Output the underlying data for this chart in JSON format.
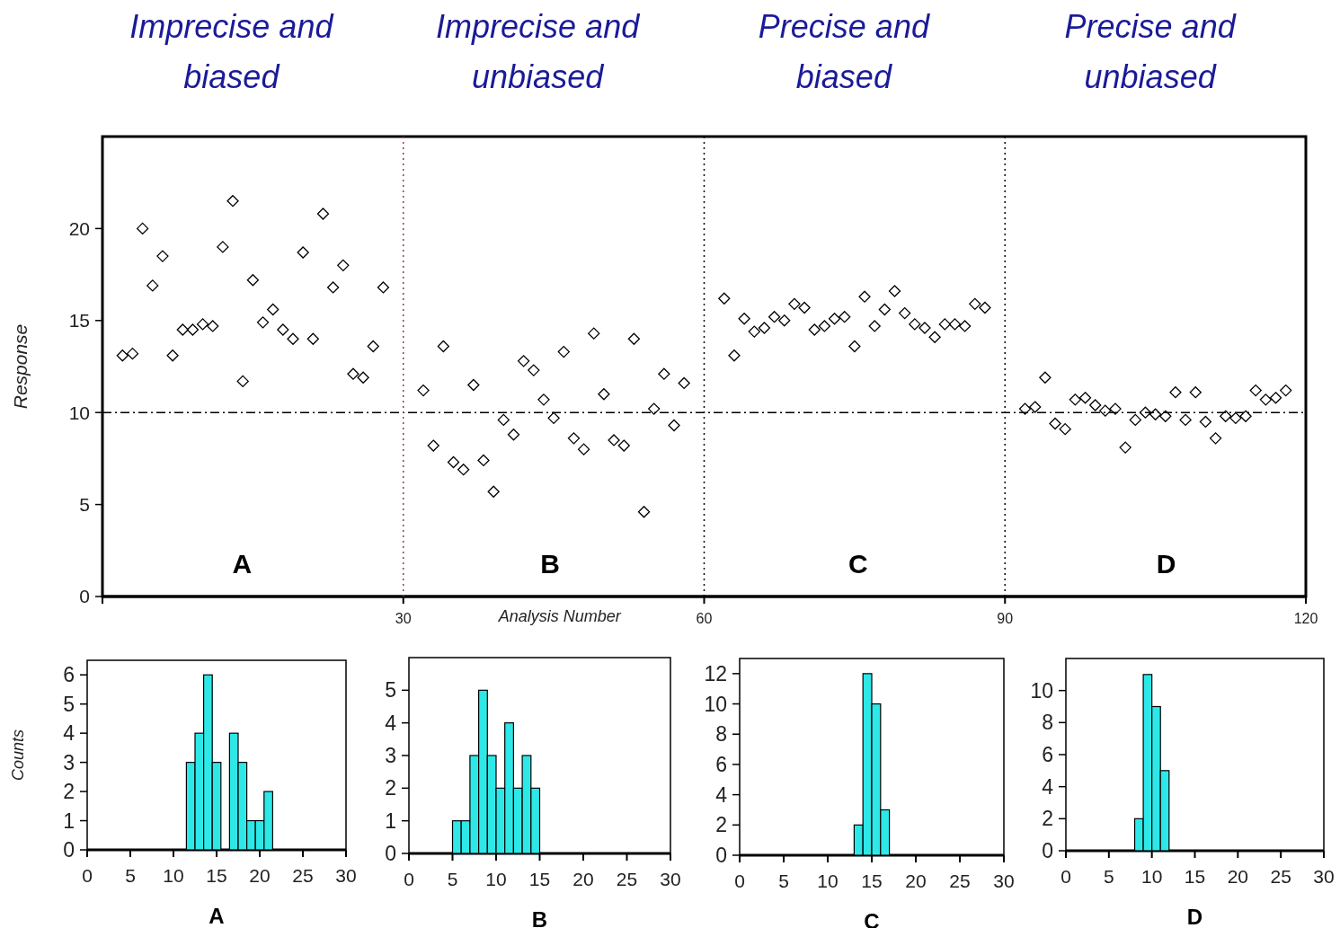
{
  "chart_data": [
    {
      "type": "scatter",
      "xlabel": "Analysis Number",
      "ylabel": "Response",
      "marker": "diamond",
      "grid": false,
      "xlim": [
        0,
        120
      ],
      "xticks": [
        {
          "value": 0,
          "label": null
        },
        30,
        60,
        90,
        120
      ],
      "ylim": [
        0,
        25
      ],
      "yticks": [
        0,
        5,
        10,
        15,
        20
      ],
      "series": [
        {
          "color": "#000000",
          "x": [
            2,
            3,
            4,
            5,
            6,
            7,
            8,
            9,
            10,
            11,
            12,
            13,
            14,
            15,
            16,
            17,
            18,
            19,
            20,
            21,
            22,
            23,
            24,
            25,
            26,
            27,
            28
          ],
          "values": [
            13.1,
            13.2,
            20.0,
            16.9,
            18.5,
            13.1,
            14.5,
            14.5,
            14.8,
            14.7,
            19.0,
            21.5,
            11.7,
            17.2,
            14.9,
            15.6,
            14.5,
            14.0,
            18.7,
            14.0,
            20.8,
            16.8,
            18.0,
            12.1,
            11.9,
            13.6,
            16.8
          ]
        },
        {
          "color": "#000000",
          "x": [
            32,
            33,
            34,
            35,
            36,
            37,
            38,
            39,
            40,
            41,
            42,
            43,
            44,
            45,
            46,
            47,
            48,
            49,
            50,
            51,
            52,
            53,
            54,
            55,
            56,
            57,
            58
          ],
          "values": [
            11.2,
            8.2,
            13.6,
            7.3,
            6.9,
            11.5,
            7.4,
            5.7,
            9.6,
            8.8,
            12.8,
            12.3,
            10.7,
            9.7,
            13.3,
            8.6,
            8.0,
            14.3,
            11.0,
            8.5,
            8.2,
            14.0,
            4.6,
            10.2,
            12.1,
            9.3,
            11.6
          ]
        },
        {
          "color": "#000000",
          "x": [
            62,
            63,
            64,
            65,
            66,
            67,
            68,
            69,
            70,
            71,
            72,
            73,
            74,
            75,
            76,
            77,
            78,
            79,
            80,
            81,
            82,
            83,
            84,
            85,
            86,
            87,
            88
          ],
          "values": [
            16.2,
            13.1,
            15.1,
            14.4,
            14.6,
            15.2,
            15.0,
            15.9,
            15.7,
            14.5,
            14.7,
            15.1,
            15.2,
            13.6,
            16.3,
            14.7,
            15.6,
            16.6,
            15.4,
            14.8,
            14.6,
            14.1,
            14.8,
            14.8,
            14.7,
            15.9,
            15.7
          ]
        },
        {
          "color": "#000000",
          "x": [
            92,
            93,
            94,
            95,
            96,
            97,
            98,
            99,
            100,
            101,
            102,
            103,
            104,
            105,
            106,
            107,
            108,
            109,
            110,
            111,
            112,
            113,
            114,
            115,
            116,
            117,
            118
          ],
          "values": [
            10.2,
            10.3,
            11.9,
            9.4,
            9.1,
            10.7,
            10.8,
            10.4,
            10.1,
            10.2,
            8.1,
            9.6,
            10.0,
            9.9,
            9.8,
            11.1,
            9.6,
            11.1,
            9.5,
            8.6,
            9.8,
            9.7,
            9.8,
            11.2,
            10.7,
            10.8,
            11.2
          ]
        }
      ],
      "ref_lines": [
        {
          "axis": "y",
          "value": 10,
          "color": "#000000",
          "line_style": "dashed"
        },
        {
          "axis": "x",
          "value": 30,
          "color": "#993366",
          "line_style": "dotted"
        },
        {
          "axis": "x",
          "value": 60,
          "color": "#000000",
          "line_style": "dotted"
        },
        {
          "axis": "x",
          "value": 90,
          "color": "#000000",
          "line_style": "dotted"
        }
      ],
      "annotations": [
        "Imprecise and biased",
        "Imprecise and unbiased",
        "Precise and biased",
        "Precise and unbiased",
        "A",
        "B",
        "C",
        "D"
      ]
    },
    {
      "type": "histogram",
      "xlabel": "A",
      "ylabel": "Counts",
      "color": "#2ee8e8",
      "grid": false,
      "xlim": [
        0,
        30
      ],
      "xticks": [
        0,
        5,
        10,
        15,
        20,
        25,
        30
      ],
      "ylim": [
        0,
        6.5
      ],
      "yticks": [
        0,
        1,
        2,
        3,
        4,
        5,
        6
      ],
      "bins": [
        11.5,
        12.5,
        13.5,
        14.5,
        15.5,
        16.5,
        17.5,
        18.5,
        19.5,
        20.5,
        21.5
      ],
      "values": [
        3,
        4,
        6,
        3,
        0,
        4,
        3,
        1,
        1,
        2
      ]
    },
    {
      "type": "histogram",
      "xlabel": "B",
      "color": "#2ee8e8",
      "grid": false,
      "xlim": [
        0,
        30
      ],
      "xticks": [
        0,
        5,
        10,
        15,
        20,
        25,
        30
      ],
      "ylim": [
        0,
        6
      ],
      "yticks": [
        0,
        1,
        2,
        3,
        4,
        5
      ],
      "bins": [
        5,
        6,
        7,
        8,
        9,
        10,
        11,
        12,
        13,
        14,
        15
      ],
      "values": [
        1,
        1,
        3,
        5,
        3,
        2,
        4,
        2,
        3,
        2
      ]
    },
    {
      "type": "histogram",
      "xlabel": "C",
      "color": "#2ee8e8",
      "grid": false,
      "xlim": [
        0,
        30
      ],
      "xticks": [
        0,
        5,
        10,
        15,
        20,
        25,
        30
      ],
      "ylim": [
        0,
        13
      ],
      "yticks": [
        0,
        2,
        4,
        6,
        8,
        10,
        12
      ],
      "bins": [
        13,
        14,
        15,
        16,
        17
      ],
      "values": [
        2,
        12,
        10,
        3
      ]
    },
    {
      "type": "histogram",
      "xlabel": "D",
      "color": "#2ee8e8",
      "grid": false,
      "xlim": [
        0,
        30
      ],
      "xticks": [
        0,
        5,
        10,
        15,
        20,
        25,
        30
      ],
      "ylim": [
        0,
        12
      ],
      "yticks": [
        0,
        2,
        4,
        6,
        8,
        10
      ],
      "bins": [
        8,
        9,
        10,
        11,
        12
      ],
      "values": [
        2,
        11,
        9,
        5
      ]
    }
  ]
}
